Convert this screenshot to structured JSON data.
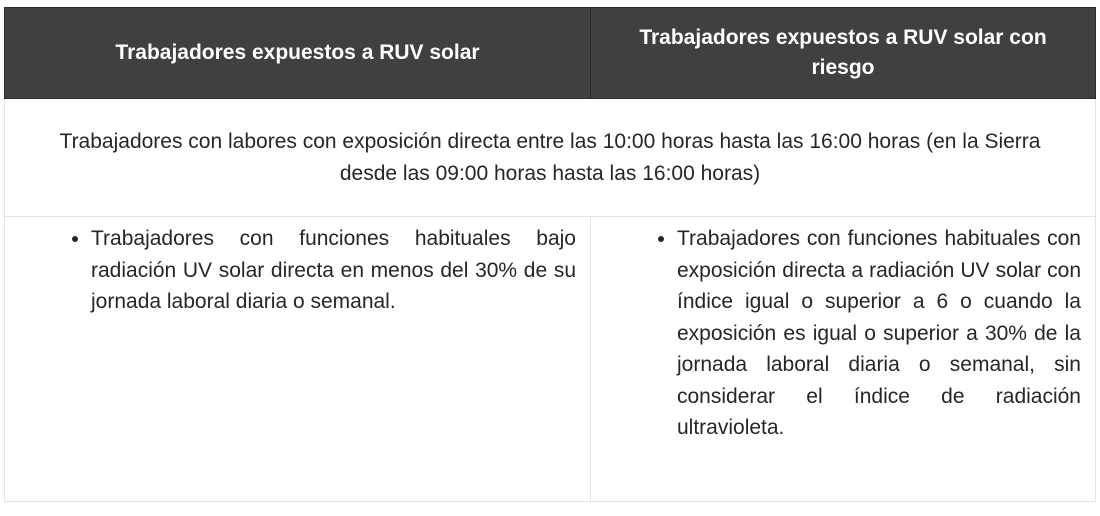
{
  "table": {
    "headers": [
      "Trabajadores expuestos a RUV solar",
      "Trabajadores expuestos a RUV solar con riesgo"
    ],
    "merged_row": "Trabajadores con labores con exposición directa entre las 10:00 horas hasta las 16:00 horas (en la Sierra desde las 09:00 horas hasta las 16:00 horas)",
    "cells": [
      "Trabajadores con funciones habituales bajo radiación UV solar directa en menos del 30% de su jornada laboral diaria o semanal.",
      "Trabajadores con funciones habituales con exposición directa a radiación UV solar con índice igual o superior a 6 o cuando la exposición es igual o superior a 30% de la jornada laboral diaria o semanal, sin considerar el índice de radiación ultravioleta."
    ]
  }
}
